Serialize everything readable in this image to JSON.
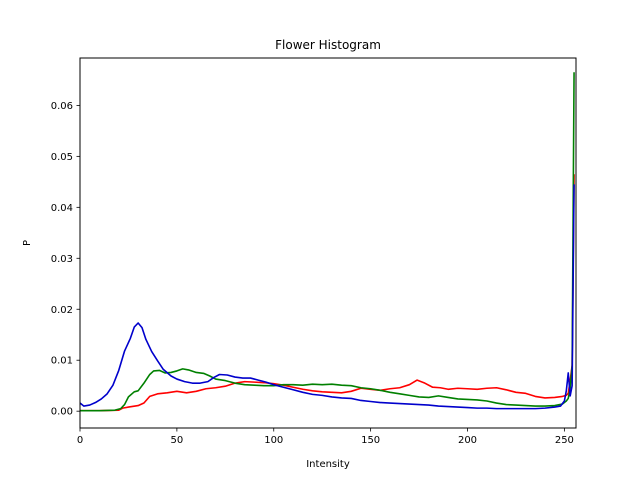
{
  "chart_data": {
    "type": "line",
    "title": "Flower Histogram",
    "xlabel": "Intensity",
    "ylabel": "P",
    "xlim": [
      0,
      256
    ],
    "ylim": [
      -0.0033,
      0.0693
    ],
    "xticks": [
      0,
      50,
      100,
      150,
      200,
      250
    ],
    "yticks": [
      0.0,
      0.01,
      0.02,
      0.03,
      0.04,
      0.05,
      0.06
    ],
    "ytick_labels": [
      "0.00",
      "0.01",
      "0.02",
      "0.03",
      "0.04",
      "0.05",
      "0.06"
    ],
    "grid": false,
    "legend": "none",
    "series": [
      {
        "color": "#ff0000",
        "points": [
          [
            0,
            0.0001
          ],
          [
            10,
            0.0001
          ],
          [
            20,
            0.0002
          ],
          [
            22,
            0.0006
          ],
          [
            25,
            0.0008
          ],
          [
            30,
            0.0011
          ],
          [
            33,
            0.0016
          ],
          [
            36,
            0.0029
          ],
          [
            40,
            0.0034
          ],
          [
            45,
            0.0036
          ],
          [
            50,
            0.0039
          ],
          [
            55,
            0.0036
          ],
          [
            60,
            0.0039
          ],
          [
            65,
            0.0044
          ],
          [
            70,
            0.0046
          ],
          [
            75,
            0.0049
          ],
          [
            80,
            0.0055
          ],
          [
            85,
            0.0058
          ],
          [
            90,
            0.0057
          ],
          [
            95,
            0.0056
          ],
          [
            100,
            0.0054
          ],
          [
            105,
            0.0051
          ],
          [
            110,
            0.0047
          ],
          [
            115,
            0.0043
          ],
          [
            120,
            0.004
          ],
          [
            125,
            0.0038
          ],
          [
            130,
            0.0037
          ],
          [
            135,
            0.0036
          ],
          [
            140,
            0.0039
          ],
          [
            145,
            0.0045
          ],
          [
            150,
            0.0043
          ],
          [
            155,
            0.0041
          ],
          [
            160,
            0.0044
          ],
          [
            165,
            0.0046
          ],
          [
            170,
            0.0052
          ],
          [
            174,
            0.0061
          ],
          [
            178,
            0.0055
          ],
          [
            182,
            0.0047
          ],
          [
            186,
            0.0046
          ],
          [
            190,
            0.0043
          ],
          [
            195,
            0.0045
          ],
          [
            200,
            0.0044
          ],
          [
            205,
            0.0043
          ],
          [
            210,
            0.0045
          ],
          [
            215,
            0.0046
          ],
          [
            220,
            0.0042
          ],
          [
            225,
            0.0037
          ],
          [
            230,
            0.0035
          ],
          [
            235,
            0.0029
          ],
          [
            240,
            0.0026
          ],
          [
            245,
            0.0027
          ],
          [
            249,
            0.0029
          ],
          [
            251,
            0.0031
          ],
          [
            252,
            0.0035
          ],
          [
            253,
            0.006
          ],
          [
            254,
            0.009
          ],
          [
            255,
            0.0465
          ]
        ]
      },
      {
        "color": "#008000",
        "points": [
          [
            0,
            0.0001
          ],
          [
            10,
            0.0001
          ],
          [
            18,
            0.0002
          ],
          [
            21,
            0.0005
          ],
          [
            23,
            0.0013
          ],
          [
            25,
            0.0028
          ],
          [
            28,
            0.0038
          ],
          [
            30,
            0.004
          ],
          [
            33,
            0.0055
          ],
          [
            36,
            0.0072
          ],
          [
            38,
            0.0079
          ],
          [
            41,
            0.008
          ],
          [
            44,
            0.0075
          ],
          [
            47,
            0.0076
          ],
          [
            50,
            0.0079
          ],
          [
            53,
            0.0083
          ],
          [
            56,
            0.0081
          ],
          [
            60,
            0.0076
          ],
          [
            64,
            0.0074
          ],
          [
            67,
            0.0069
          ],
          [
            70,
            0.0063
          ],
          [
            75,
            0.006
          ],
          [
            80,
            0.0055
          ],
          [
            85,
            0.0052
          ],
          [
            90,
            0.0051
          ],
          [
            95,
            0.005
          ],
          [
            100,
            0.005
          ],
          [
            105,
            0.0052
          ],
          [
            110,
            0.0052
          ],
          [
            115,
            0.0051
          ],
          [
            120,
            0.0053
          ],
          [
            125,
            0.0052
          ],
          [
            130,
            0.0053
          ],
          [
            135,
            0.0051
          ],
          [
            140,
            0.005
          ],
          [
            145,
            0.0046
          ],
          [
            150,
            0.0044
          ],
          [
            155,
            0.0041
          ],
          [
            160,
            0.0037
          ],
          [
            165,
            0.0034
          ],
          [
            170,
            0.0031
          ],
          [
            175,
            0.0028
          ],
          [
            180,
            0.0027
          ],
          [
            185,
            0.003
          ],
          [
            190,
            0.0027
          ],
          [
            195,
            0.0024
          ],
          [
            200,
            0.0023
          ],
          [
            205,
            0.0022
          ],
          [
            210,
            0.002
          ],
          [
            215,
            0.0016
          ],
          [
            220,
            0.0013
          ],
          [
            225,
            0.0012
          ],
          [
            230,
            0.0011
          ],
          [
            235,
            0.001
          ],
          [
            240,
            0.001
          ],
          [
            245,
            0.0011
          ],
          [
            249,
            0.0014
          ],
          [
            251,
            0.002
          ],
          [
            252,
            0.0025
          ],
          [
            253,
            0.0045
          ],
          [
            254,
            0.009
          ],
          [
            255,
            0.0665
          ]
        ]
      },
      {
        "color": "#0000cc",
        "points": [
          [
            0,
            0.0016
          ],
          [
            2,
            0.001
          ],
          [
            5,
            0.0012
          ],
          [
            8,
            0.0017
          ],
          [
            11,
            0.0024
          ],
          [
            14,
            0.0034
          ],
          [
            17,
            0.0051
          ],
          [
            20,
            0.008
          ],
          [
            23,
            0.0118
          ],
          [
            26,
            0.0143
          ],
          [
            28,
            0.0165
          ],
          [
            30,
            0.0173
          ],
          [
            32,
            0.0164
          ],
          [
            34,
            0.0141
          ],
          [
            37,
            0.0117
          ],
          [
            40,
            0.0099
          ],
          [
            43,
            0.0082
          ],
          [
            47,
            0.0069
          ],
          [
            50,
            0.0063
          ],
          [
            54,
            0.0058
          ],
          [
            58,
            0.0055
          ],
          [
            62,
            0.0055
          ],
          [
            66,
            0.0058
          ],
          [
            69,
            0.0066
          ],
          [
            72,
            0.0072
          ],
          [
            76,
            0.0071
          ],
          [
            80,
            0.0067
          ],
          [
            84,
            0.0065
          ],
          [
            88,
            0.0065
          ],
          [
            92,
            0.0061
          ],
          [
            96,
            0.0057
          ],
          [
            100,
            0.0052
          ],
          [
            105,
            0.0047
          ],
          [
            110,
            0.0042
          ],
          [
            115,
            0.0037
          ],
          [
            120,
            0.0033
          ],
          [
            125,
            0.0031
          ],
          [
            130,
            0.0028
          ],
          [
            135,
            0.0026
          ],
          [
            140,
            0.0025
          ],
          [
            145,
            0.0021
          ],
          [
            150,
            0.0019
          ],
          [
            155,
            0.0017
          ],
          [
            160,
            0.0016
          ],
          [
            165,
            0.0015
          ],
          [
            170,
            0.0014
          ],
          [
            175,
            0.0013
          ],
          [
            180,
            0.0012
          ],
          [
            185,
            0.001
          ],
          [
            190,
            0.0009
          ],
          [
            195,
            0.0008
          ],
          [
            200,
            0.0007
          ],
          [
            205,
            0.0006
          ],
          [
            210,
            0.0006
          ],
          [
            215,
            0.0005
          ],
          [
            220,
            0.0005
          ],
          [
            225,
            0.0005
          ],
          [
            230,
            0.0005
          ],
          [
            235,
            0.0005
          ],
          [
            240,
            0.0006
          ],
          [
            245,
            0.0008
          ],
          [
            248,
            0.001
          ],
          [
            250,
            0.002
          ],
          [
            251,
            0.004
          ],
          [
            252,
            0.0075
          ],
          [
            253,
            0.003
          ],
          [
            254,
            0.005
          ],
          [
            255,
            0.0445
          ]
        ]
      }
    ]
  }
}
